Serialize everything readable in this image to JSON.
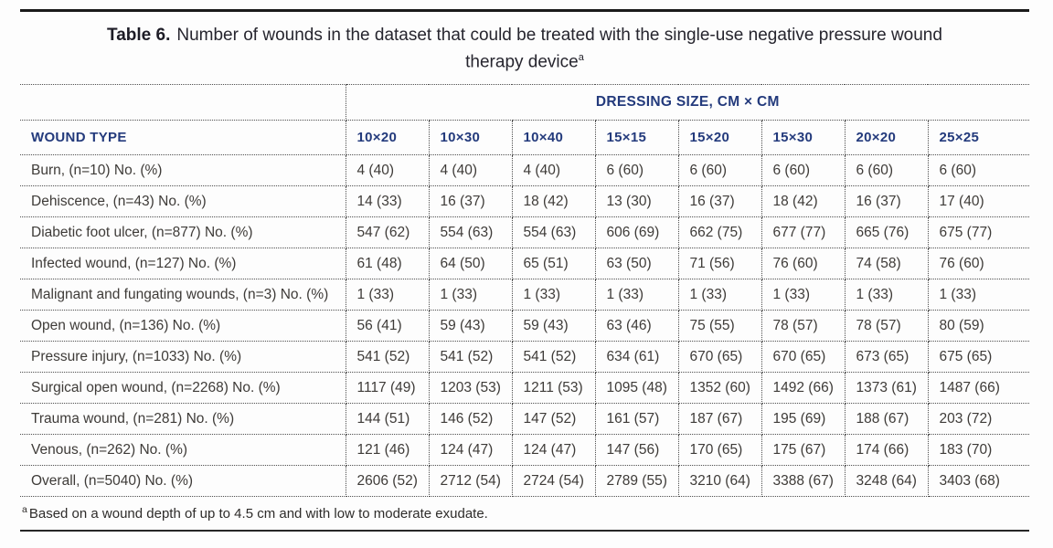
{
  "title": {
    "prefix": "Table 6.",
    "line1": "Number of wounds in the dataset that could be treated with the single-use negative pressure wound",
    "line2": "therapy device",
    "footnote_marker": "a"
  },
  "chart_data": {
    "type": "table",
    "title": "Table 6. Number of wounds in the dataset that could be treated with the single-use negative pressure wound therapy device",
    "group_header": "DRESSING SIZE, CM × CM",
    "columns": [
      "WOUND TYPE",
      "10×20",
      "10×30",
      "10×40",
      "15×15",
      "15×20",
      "15×30",
      "20×20",
      "25×25"
    ],
    "rows": [
      {
        "label": "Burn, (n=10) No. (%)",
        "values": [
          "4 (40)",
          "4 (40)",
          "4 (40)",
          "6 (60)",
          "6 (60)",
          "6 (60)",
          "6 (60)",
          "6 (60)"
        ]
      },
      {
        "label": "Dehiscence, (n=43) No. (%)",
        "values": [
          "14 (33)",
          "16 (37)",
          "18 (42)",
          "13 (30)",
          "16 (37)",
          "18 (42)",
          "16 (37)",
          "17 (40)"
        ]
      },
      {
        "label": "Diabetic foot ulcer, (n=877) No. (%)",
        "values": [
          "547 (62)",
          "554 (63)",
          "554 (63)",
          "606 (69)",
          "662 (75)",
          "677 (77)",
          "665 (76)",
          "675 (77)"
        ]
      },
      {
        "label": "Infected wound, (n=127) No. (%)",
        "values": [
          "61 (48)",
          "64 (50)",
          "65 (51)",
          "63 (50)",
          "71 (56)",
          "76 (60)",
          "74 (58)",
          "76 (60)"
        ]
      },
      {
        "label": "Malignant and fungating wounds, (n=3) No. (%)",
        "values": [
          "1 (33)",
          "1 (33)",
          "1 (33)",
          "1 (33)",
          "1 (33)",
          "1 (33)",
          "1 (33)",
          "1 (33)"
        ]
      },
      {
        "label": "Open wound, (n=136) No. (%)",
        "values": [
          "56 (41)",
          "59 (43)",
          "59 (43)",
          "63 (46)",
          "75 (55)",
          "78 (57)",
          "78 (57)",
          "80 (59)"
        ]
      },
      {
        "label": "Pressure injury, (n=1033) No. (%)",
        "values": [
          "541 (52)",
          "541 (52)",
          "541 (52)",
          "634 (61)",
          "670 (65)",
          "670 (65)",
          "673 (65)",
          "675 (65)"
        ]
      },
      {
        "label": "Surgical open wound, (n=2268) No. (%)",
        "values": [
          "1117 (49)",
          "1203 (53)",
          "1211 (53)",
          "1095 (48)",
          "1352 (60)",
          "1492 (66)",
          "1373 (61)",
          "1487 (66)"
        ]
      },
      {
        "label": "Trauma wound, (n=281) No. (%)",
        "values": [
          "144 (51)",
          "146 (52)",
          "147 (52)",
          "161 (57)",
          "187 (67)",
          "195 (69)",
          "188 (67)",
          "203 (72)"
        ]
      },
      {
        "label": "Venous, (n=262) No. (%)",
        "values": [
          "121 (46)",
          "124 (47)",
          "124 (47)",
          "147 (56)",
          "170 (65)",
          "175 (67)",
          "174 (66)",
          "183 (70)"
        ]
      },
      {
        "label": "Overall, (n=5040) No. (%)",
        "values": [
          "2606 (52)",
          "2712 (54)",
          "2724 (54)",
          "2789 (55)",
          "3210 (64)",
          "3388 (67)",
          "3248 (64)",
          "3403 (68)"
        ]
      }
    ]
  },
  "footnote": {
    "marker": "a",
    "text": "Based on a wound depth of up to 4.5 cm and with low to moderate exudate."
  },
  "colors": {
    "header_navy": "#233a7c",
    "body_text": "#3e3b38",
    "title_text": "#26252e",
    "top_rule": "#1a1a1a",
    "bottom_rule": "#262626",
    "dotted_border": "#4e4e4e",
    "background": "#fdfdfd"
  }
}
